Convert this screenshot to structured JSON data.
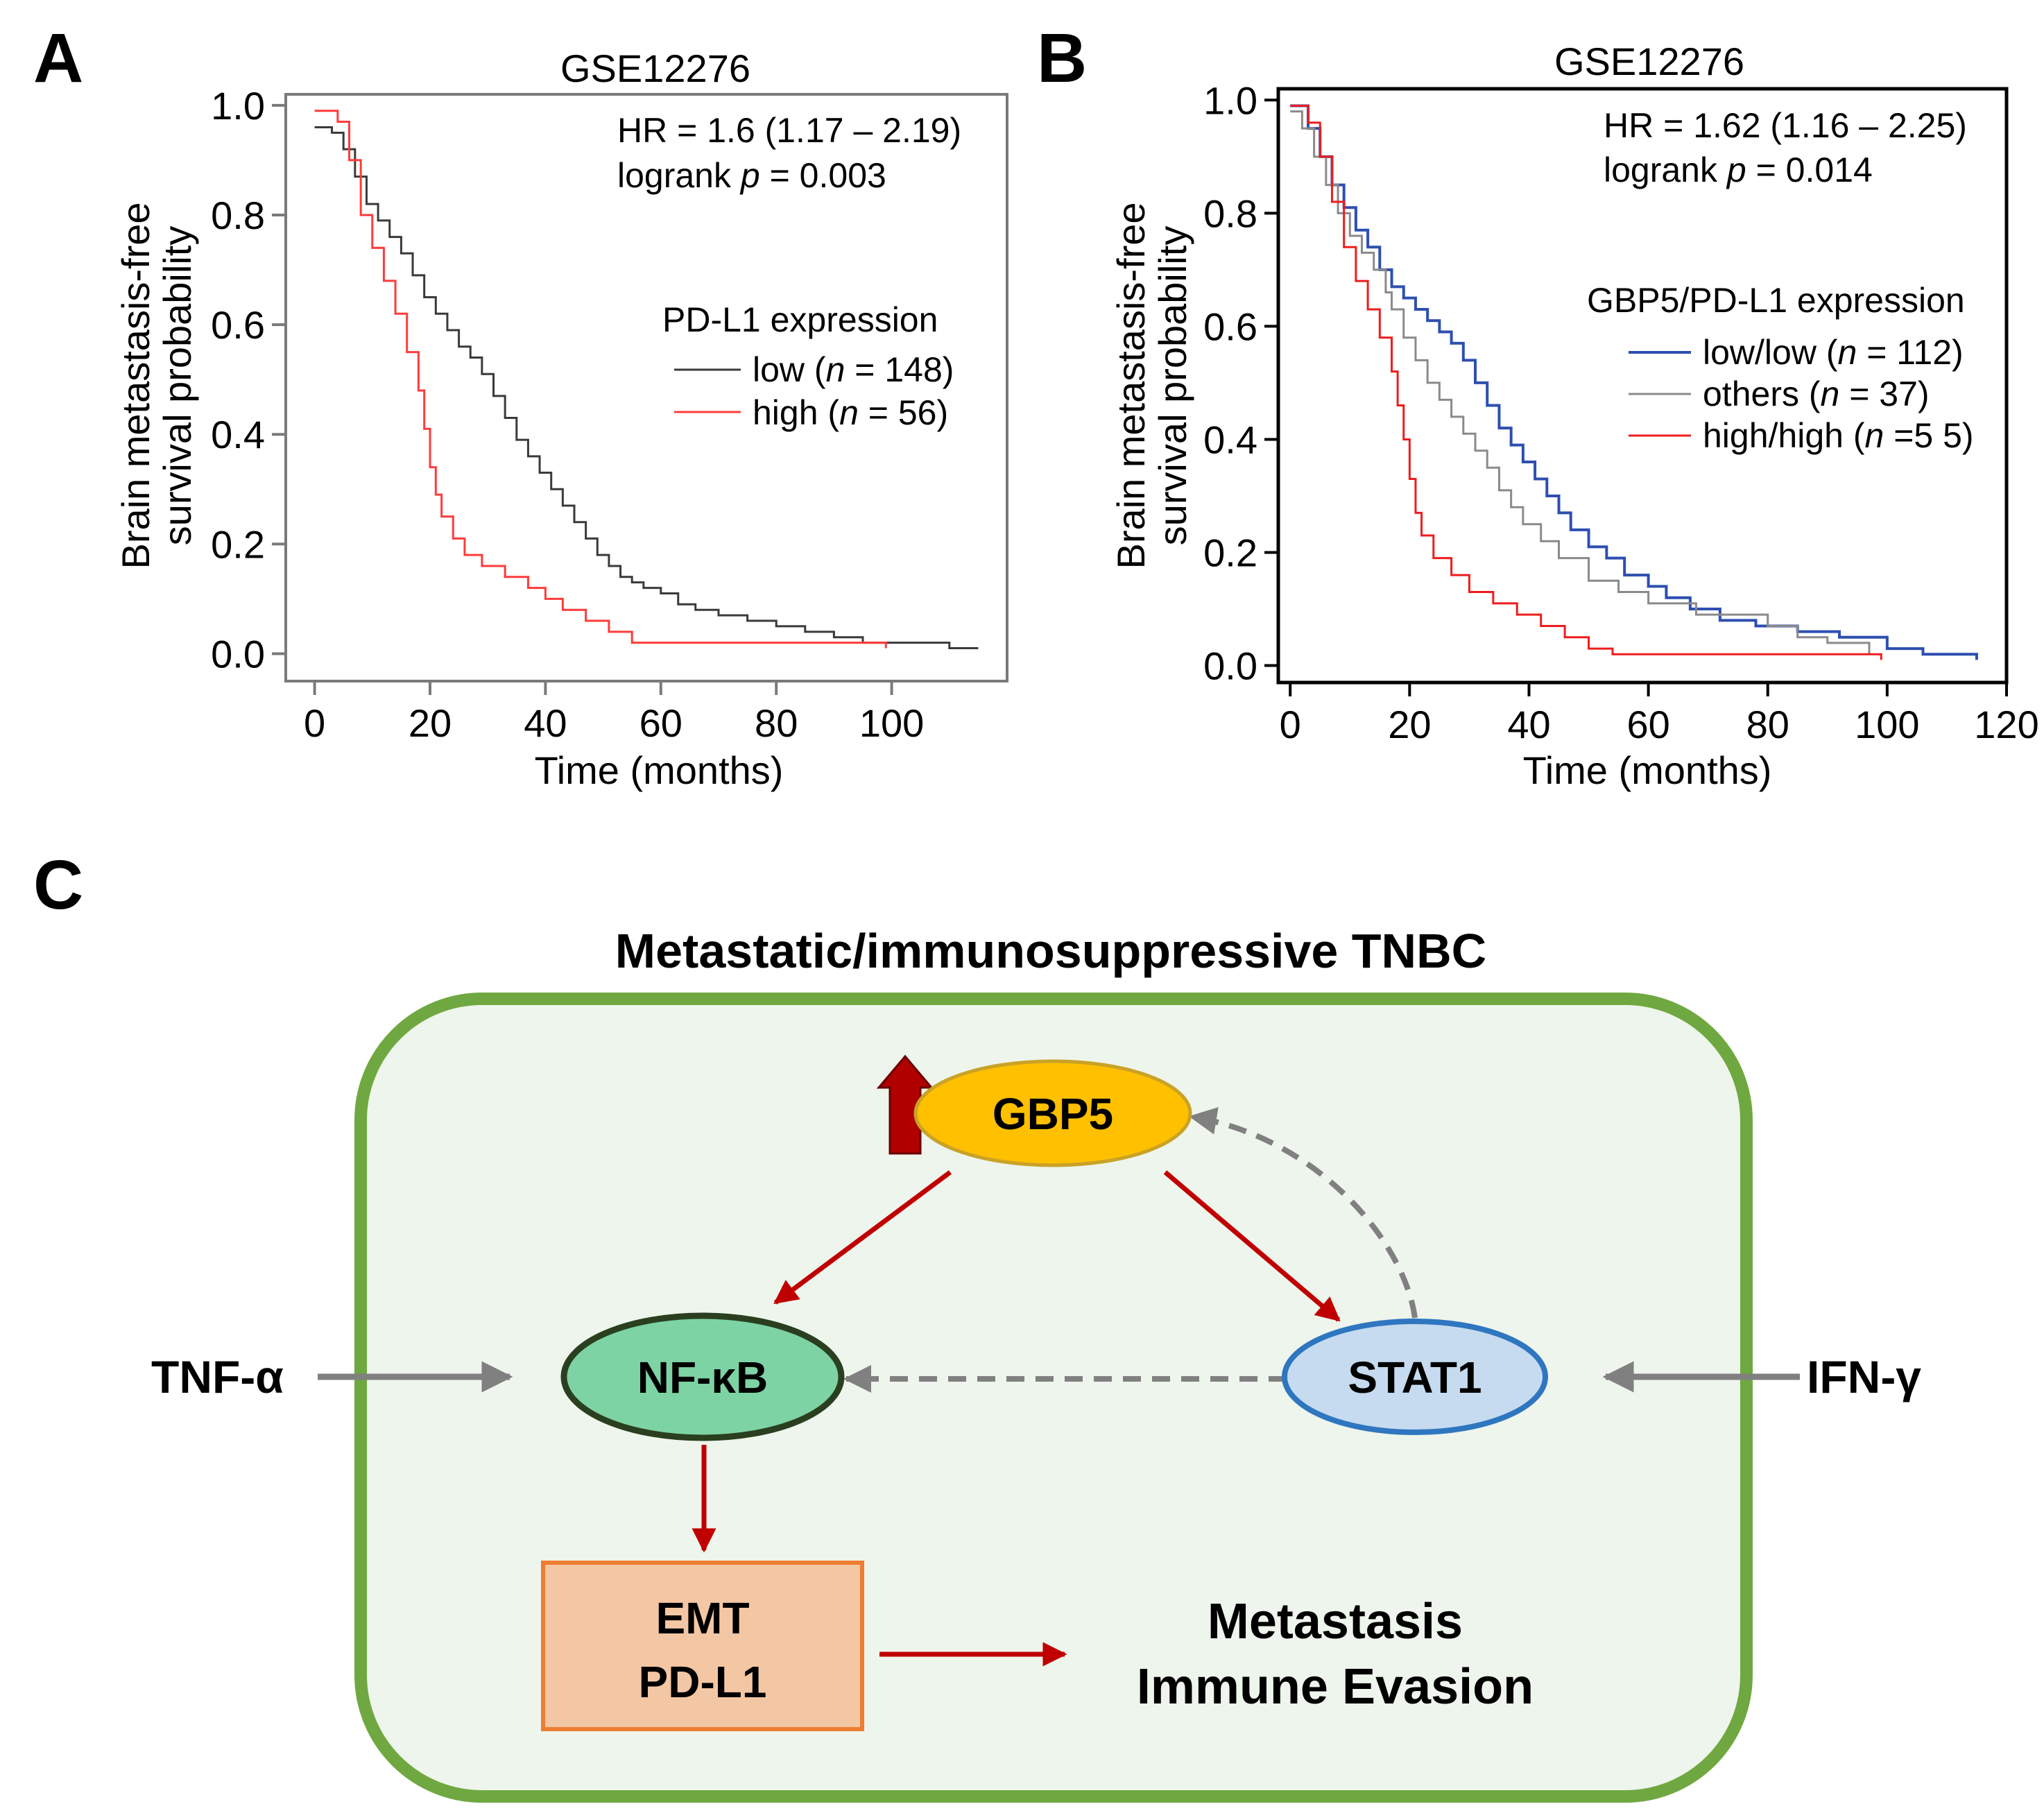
{
  "figure": {
    "panels": {
      "a": "A",
      "b": "B",
      "c": "C"
    }
  },
  "chart_data": [
    {
      "type": "line",
      "title": "GSE12276",
      "xlabel": "Time (months)",
      "ylabel_line1": "Brain metastasis-free",
      "ylabel_line2": "survival probability",
      "xlim": [
        -5,
        120
      ],
      "ylim": [
        -0.05,
        1.02
      ],
      "xticks": [
        0,
        20,
        40,
        60,
        80,
        100
      ],
      "xtick_labels": [
        "0",
        "20",
        "40",
        "60",
        "80",
        "100"
      ],
      "yticks": [
        0.0,
        0.2,
        0.4,
        0.6,
        0.8,
        1.0
      ],
      "ytick_labels": [
        "0.0",
        "0.2",
        "0.4",
        "0.6",
        "0.8",
        "1.0"
      ],
      "stats": {
        "hr": "HR = 1.6 (1.17 – 2.19)",
        "logrank_prefix": "logrank ",
        "logrank_p": "p",
        "logrank_value": " = 0.003"
      },
      "legend_title": "PD-L1 expression",
      "series": [
        {
          "name": "low",
          "n_label": "n",
          "n_value": " = 148)",
          "color": "#3a3a3a",
          "points": [
            [
              0,
              0.96
            ],
            [
              3,
              0.95
            ],
            [
              5,
              0.92
            ],
            [
              7,
              0.87
            ],
            [
              9,
              0.82
            ],
            [
              11,
              0.79
            ],
            [
              13,
              0.76
            ],
            [
              15,
              0.73
            ],
            [
              17,
              0.69
            ],
            [
              19,
              0.65
            ],
            [
              21,
              0.62
            ],
            [
              23,
              0.59
            ],
            [
              25,
              0.56
            ],
            [
              27,
              0.54
            ],
            [
              29,
              0.51
            ],
            [
              31,
              0.47
            ],
            [
              33,
              0.43
            ],
            [
              35,
              0.39
            ],
            [
              37,
              0.36
            ],
            [
              39,
              0.33
            ],
            [
              41,
              0.3
            ],
            [
              43,
              0.27
            ],
            [
              45,
              0.24
            ],
            [
              47,
              0.21
            ],
            [
              49,
              0.18
            ],
            [
              51,
              0.16
            ],
            [
              53,
              0.14
            ],
            [
              55,
              0.13
            ],
            [
              57,
              0.12
            ],
            [
              60,
              0.11
            ],
            [
              63,
              0.09
            ],
            [
              66,
              0.08
            ],
            [
              70,
              0.07
            ],
            [
              75,
              0.06
            ],
            [
              80,
              0.05
            ],
            [
              85,
              0.04
            ],
            [
              90,
              0.03
            ],
            [
              95,
              0.02
            ],
            [
              100,
              0.02
            ],
            [
              105,
              0.02
            ],
            [
              110,
              0.01
            ],
            [
              115,
              0.01
            ]
          ]
        },
        {
          "name": "high",
          "n_label": "n",
          "n_value": " = 56)",
          "color": "#ff3b3b",
          "points": [
            [
              0,
              0.99
            ],
            [
              4,
              0.97
            ],
            [
              6,
              0.9
            ],
            [
              8,
              0.8
            ],
            [
              10,
              0.74
            ],
            [
              12,
              0.68
            ],
            [
              14,
              0.62
            ],
            [
              16,
              0.55
            ],
            [
              18,
              0.48
            ],
            [
              19,
              0.41
            ],
            [
              20,
              0.34
            ],
            [
              21,
              0.29
            ],
            [
              22,
              0.25
            ],
            [
              24,
              0.21
            ],
            [
              26,
              0.18
            ],
            [
              29,
              0.16
            ],
            [
              33,
              0.14
            ],
            [
              37,
              0.12
            ],
            [
              40,
              0.1
            ],
            [
              43,
              0.08
            ],
            [
              47,
              0.06
            ],
            [
              51,
              0.04
            ],
            [
              55,
              0.02
            ],
            [
              60,
              0.02
            ],
            [
              80,
              0.02
            ],
            [
              99,
              0.01
            ]
          ]
        }
      ]
    },
    {
      "type": "line",
      "title": "GSE12276",
      "xlabel": "Time (months)",
      "ylabel_line1": "Brain metastasis-free",
      "ylabel_line2": "survival probability",
      "xlim": [
        -2,
        120
      ],
      "ylim": [
        -0.03,
        1.02
      ],
      "xticks": [
        0,
        20,
        40,
        60,
        80,
        100,
        120
      ],
      "xtick_labels": [
        "0",
        "20",
        "40",
        "60",
        "80",
        "100",
        "120"
      ],
      "yticks": [
        0.0,
        0.2,
        0.4,
        0.6,
        0.8,
        1.0
      ],
      "ytick_labels": [
        "0.0",
        "0.2",
        "0.4",
        "0.6",
        "0.8",
        "1.0"
      ],
      "stats": {
        "hr": "HR = 1.62 (1.16 – 2.25)",
        "logrank_prefix": "logrank ",
        "logrank_p": "p",
        "logrank_value": " = 0.014"
      },
      "legend_title": "GBP5/PD-L1 expression",
      "series": [
        {
          "name": "low/low",
          "n_label": "n",
          "n_value": " = 112)",
          "color": "#2e4fb0",
          "points": [
            [
              0,
              0.99
            ],
            [
              3,
              0.95
            ],
            [
              5,
              0.9
            ],
            [
              7,
              0.85
            ],
            [
              9,
              0.81
            ],
            [
              11,
              0.77
            ],
            [
              13,
              0.74
            ],
            [
              15,
              0.7
            ],
            [
              17,
              0.67
            ],
            [
              19,
              0.65
            ],
            [
              21,
              0.63
            ],
            [
              23,
              0.61
            ],
            [
              25,
              0.59
            ],
            [
              27,
              0.57
            ],
            [
              29,
              0.54
            ],
            [
              31,
              0.5
            ],
            [
              33,
              0.46
            ],
            [
              35,
              0.42
            ],
            [
              37,
              0.39
            ],
            [
              39,
              0.36
            ],
            [
              41,
              0.33
            ],
            [
              43,
              0.3
            ],
            [
              45,
              0.27
            ],
            [
              47,
              0.24
            ],
            [
              50,
              0.21
            ],
            [
              53,
              0.19
            ],
            [
              56,
              0.16
            ],
            [
              60,
              0.14
            ],
            [
              63,
              0.12
            ],
            [
              67,
              0.1
            ],
            [
              72,
              0.08
            ],
            [
              78,
              0.07
            ],
            [
              85,
              0.06
            ],
            [
              92,
              0.05
            ],
            [
              100,
              0.03
            ],
            [
              106,
              0.02
            ],
            [
              110,
              0.02
            ],
            [
              115,
              0.01
            ]
          ]
        },
        {
          "name": "others",
          "n_label": "n",
          "n_value": " = 37)",
          "color": "#8a8a8a",
          "points": [
            [
              0,
              0.98
            ],
            [
              2,
              0.95
            ],
            [
              4,
              0.9
            ],
            [
              6,
              0.85
            ],
            [
              8,
              0.8
            ],
            [
              10,
              0.76
            ],
            [
              12,
              0.73
            ],
            [
              14,
              0.7
            ],
            [
              16,
              0.66
            ],
            [
              17,
              0.63
            ],
            [
              19,
              0.58
            ],
            [
              21,
              0.54
            ],
            [
              23,
              0.5
            ],
            [
              25,
              0.47
            ],
            [
              27,
              0.44
            ],
            [
              29,
              0.41
            ],
            [
              31,
              0.38
            ],
            [
              33,
              0.35
            ],
            [
              35,
              0.31
            ],
            [
              37,
              0.28
            ],
            [
              39,
              0.25
            ],
            [
              42,
              0.22
            ],
            [
              45,
              0.19
            ],
            [
              50,
              0.15
            ],
            [
              55,
              0.13
            ],
            [
              60,
              0.11
            ],
            [
              68,
              0.09
            ],
            [
              75,
              0.09
            ],
            [
              80,
              0.07
            ],
            [
              85,
              0.05
            ],
            [
              90,
              0.04
            ],
            [
              97,
              0.02
            ]
          ]
        },
        {
          "name": "high/high",
          "n_label": "n",
          "n_value": " =5 5)",
          "color": "#ef1c1c",
          "points": [
            [
              0,
              0.99
            ],
            [
              3,
              0.96
            ],
            [
              5,
              0.9
            ],
            [
              7,
              0.82
            ],
            [
              9,
              0.74
            ],
            [
              11,
              0.68
            ],
            [
              13,
              0.63
            ],
            [
              15,
              0.58
            ],
            [
              17,
              0.52
            ],
            [
              18,
              0.46
            ],
            [
              19,
              0.4
            ],
            [
              20,
              0.33
            ],
            [
              21,
              0.27
            ],
            [
              22,
              0.23
            ],
            [
              24,
              0.19
            ],
            [
              27,
              0.16
            ],
            [
              30,
              0.13
            ],
            [
              34,
              0.11
            ],
            [
              38,
              0.09
            ],
            [
              42,
              0.07
            ],
            [
              46,
              0.05
            ],
            [
              50,
              0.03
            ],
            [
              54,
              0.02
            ],
            [
              60,
              0.02
            ],
            [
              80,
              0.02
            ],
            [
              99,
              0.01
            ]
          ]
        }
      ]
    }
  ],
  "diagram": {
    "title": "Metastatic/immunosuppressive TNBC",
    "gbp5": "GBP5",
    "nfkb": "NF-κB",
    "stat1": "STAT1",
    "tnf": "TNF-α",
    "ifn": "IFN-γ",
    "emt_line1": "EMT",
    "emt_line2": "PD-L1",
    "outcome_line1": "Metastasis",
    "outcome_line2": "Immune Evasion",
    "colors": {
      "cell_border": "#6fa840",
      "cell_fill": "#eef5ec",
      "gbp5_fill": "#ffc000",
      "gbp5_stroke": "#c9a227",
      "nfkb_fill": "#7dd3a4",
      "nfkb_stroke": "#2a3f1f",
      "stat1_fill": "#c6dbef",
      "stat1_stroke": "#2f76c0",
      "box_fill": "#f4c7a4",
      "box_stroke": "#ed7d31",
      "red_arrow": "#c00000",
      "gray_arrow": "#808080",
      "up_arrow": "#b00000"
    }
  }
}
